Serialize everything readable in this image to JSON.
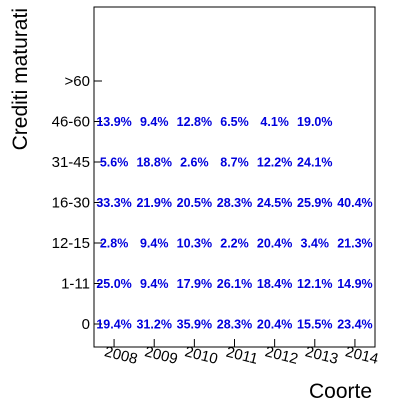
{
  "chart_data": {
    "type": "heatmap",
    "xlabel": "Coorte",
    "ylabel": "Crediti maturati",
    "x_categories": [
      "2008",
      "2009",
      "2010",
      "2011",
      "2012",
      "2013",
      "2014"
    ],
    "y_categories": [
      "0",
      "1-11",
      "12-15",
      "16-30",
      "31-45",
      "46-60",
      ">60"
    ],
    "cells": [
      [
        "19.4%",
        "31.2%",
        "35.9%",
        "28.3%",
        "20.4%",
        "15.5%",
        "23.4%"
      ],
      [
        "25.0%",
        "9.4%",
        "17.9%",
        "26.1%",
        "18.4%",
        "12.1%",
        "14.9%"
      ],
      [
        "2.8%",
        "9.4%",
        "10.3%",
        "2.2%",
        "20.4%",
        "3.4%",
        "21.3%"
      ],
      [
        "33.3%",
        "21.9%",
        "20.5%",
        "28.3%",
        "24.5%",
        "25.9%",
        "40.4%"
      ],
      [
        "5.6%",
        "18.8%",
        "2.6%",
        "8.7%",
        "12.2%",
        "24.1%",
        ""
      ],
      [
        "13.9%",
        "9.4%",
        "12.8%",
        "6.5%",
        "4.1%",
        "19.0%",
        ""
      ],
      [
        "",
        "",
        "",
        "",
        "",
        "",
        ""
      ]
    ],
    "label_color": "#0000dd",
    "grid": false
  }
}
